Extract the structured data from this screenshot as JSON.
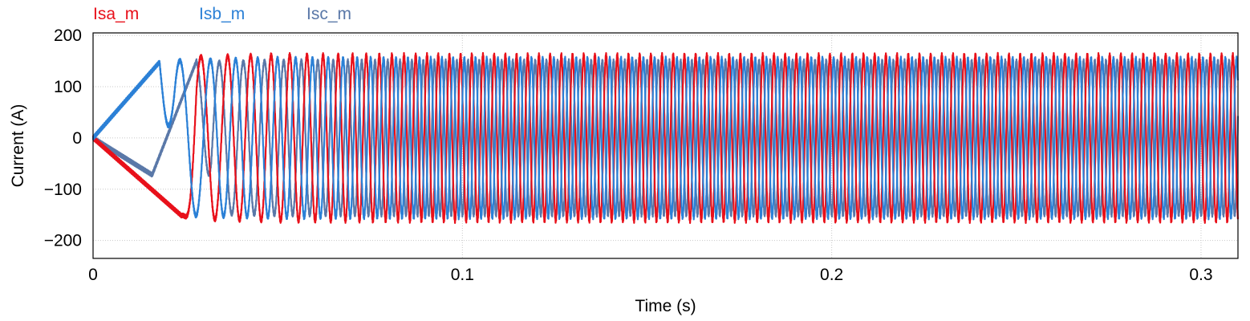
{
  "chart_data": {
    "type": "line",
    "title": "",
    "xlabel": "Time (s)",
    "ylabel": "Current (A)",
    "xlim": [
      0,
      0.31
    ],
    "ylim": [
      -235,
      205
    ],
    "x_ticks": [
      0,
      0.1,
      0.2,
      0.3
    ],
    "x_tick_labels": [
      "0",
      "0.1",
      "0.2",
      "0.3"
    ],
    "y_ticks": [
      -200,
      -100,
      0,
      100,
      200
    ],
    "y_tick_labels": [
      "−200",
      "−100",
      "0",
      "100",
      "200"
    ],
    "grid": true,
    "legend_position": "top-left",
    "series": [
      {
        "name": "Isa_m",
        "color": "#e8101a",
        "phase_offset_deg": 0,
        "ramp_points": [
          [
            0,
            0
          ],
          [
            0.024,
            -152
          ]
        ],
        "steady_amplitude": 162,
        "steady_from": 0.09,
        "start_frequency_hz": 28,
        "end_frequency_hz": 330
      },
      {
        "name": "Isb_m",
        "color": "#2b80d6",
        "phase_offset_deg": -120,
        "ramp_points": [
          [
            0,
            0
          ],
          [
            0.018,
            148
          ]
        ],
        "steady_amplitude": 155,
        "steady_from": 0.09,
        "start_frequency_hz": 28,
        "end_frequency_hz": 330
      },
      {
        "name": "Isc_m",
        "color": "#5a78a8",
        "phase_offset_deg": 120,
        "ramp_points": [
          [
            0,
            0
          ],
          [
            0.016,
            -72
          ],
          [
            0.028,
            150
          ]
        ],
        "steady_amplitude": 150,
        "steady_from": 0.09,
        "start_frequency_hz": 28,
        "end_frequency_hz": 330
      }
    ]
  }
}
